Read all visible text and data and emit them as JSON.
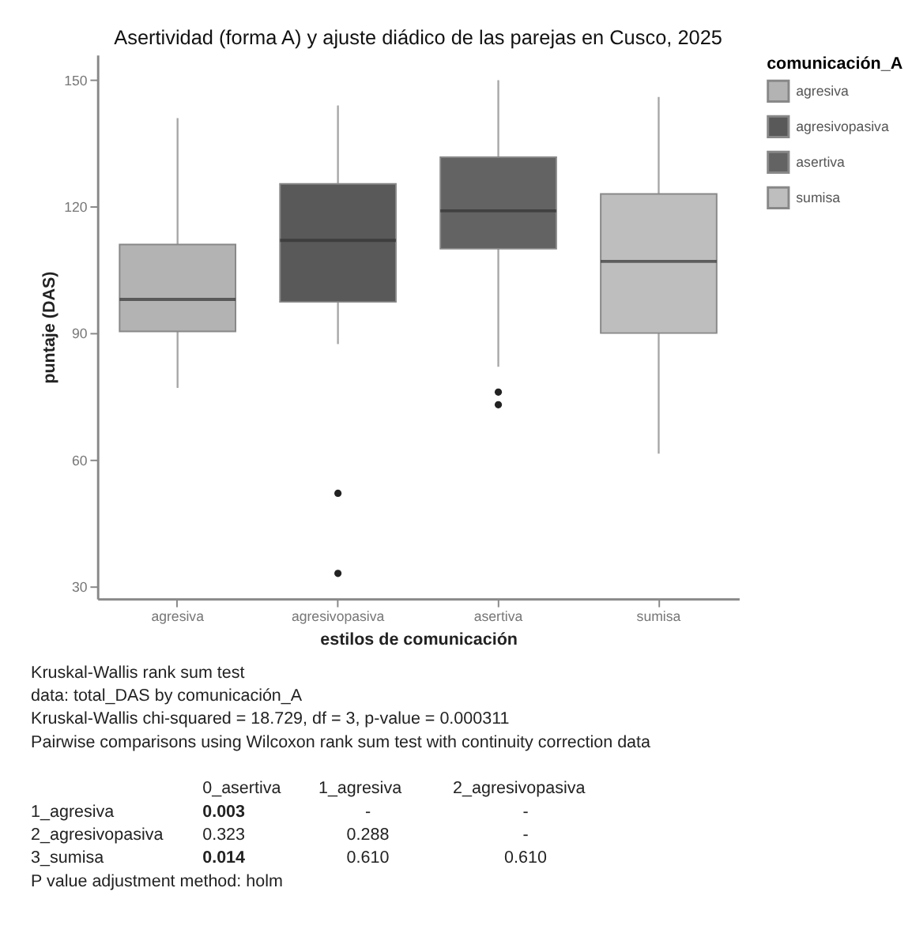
{
  "chart_data": {
    "type": "box",
    "title": "Asertividad (forma A) y ajuste diádico de las parejas en Cusco, 2025",
    "xlabel": "estilos de comunicación",
    "ylabel": "puntaje (DAS)",
    "legend_title": "comunicación_A",
    "legend": "right",
    "grid": false,
    "categories": [
      "agresiva",
      "agresivopasiva",
      "asertiva",
      "sumisa"
    ],
    "series": [
      {
        "name": "agresiva",
        "color": "#b3b3b3",
        "boxes": [
          {
            "low": 77,
            "q1": 90.4,
            "median": 98,
            "q3": 111,
            "high": 141
          },
          null,
          null,
          null
        ]
      },
      {
        "name": "agresivopasiva",
        "color": "#595959",
        "boxes": [
          null,
          {
            "low": 87.4,
            "q1": 97.4,
            "median": 112,
            "q3": 125.4,
            "high": 144,
            "outliers": [
              52,
              33
            ]
          },
          null,
          null
        ]
      },
      {
        "name": "asertiva",
        "color": "#636363",
        "boxes": [
          null,
          null,
          {
            "low": 82,
            "q1": 110,
            "median": 119,
            "q3": 131.7,
            "high": 150,
            "outliers": [
              76,
              73
            ]
          },
          null
        ]
      },
      {
        "name": "sumisa",
        "color": "#bebebe",
        "boxes": [
          null,
          null,
          null,
          {
            "low": 61.4,
            "q1": 90,
            "median": 107,
            "q3": 123,
            "high": 146
          }
        ]
      }
    ],
    "ylim": [
      27,
      156
    ],
    "yticks": [
      30,
      60,
      90,
      120,
      150
    ],
    "annotations": [
      "Kruskal-Wallis rank sum test",
      "data:  total_DAS by comunicación_A",
      "Kruskal-Wallis chi-squared = 18.729, df = 3, p-value = 0.000311",
      "Pairwise comparisons using Wilcoxon rank sum test with continuity correction data",
      "0_asertiva",
      "1_agresiva",
      "2_agresivopasiva",
      "1_agresiva",
      "0.003",
      "-",
      "-",
      "2_agresivopasiva",
      "0.323",
      "0.288",
      "-",
      "3_sumisa",
      "0.014",
      "0.610",
      "0.610",
      "P value adjustment method: holm"
    ]
  }
}
